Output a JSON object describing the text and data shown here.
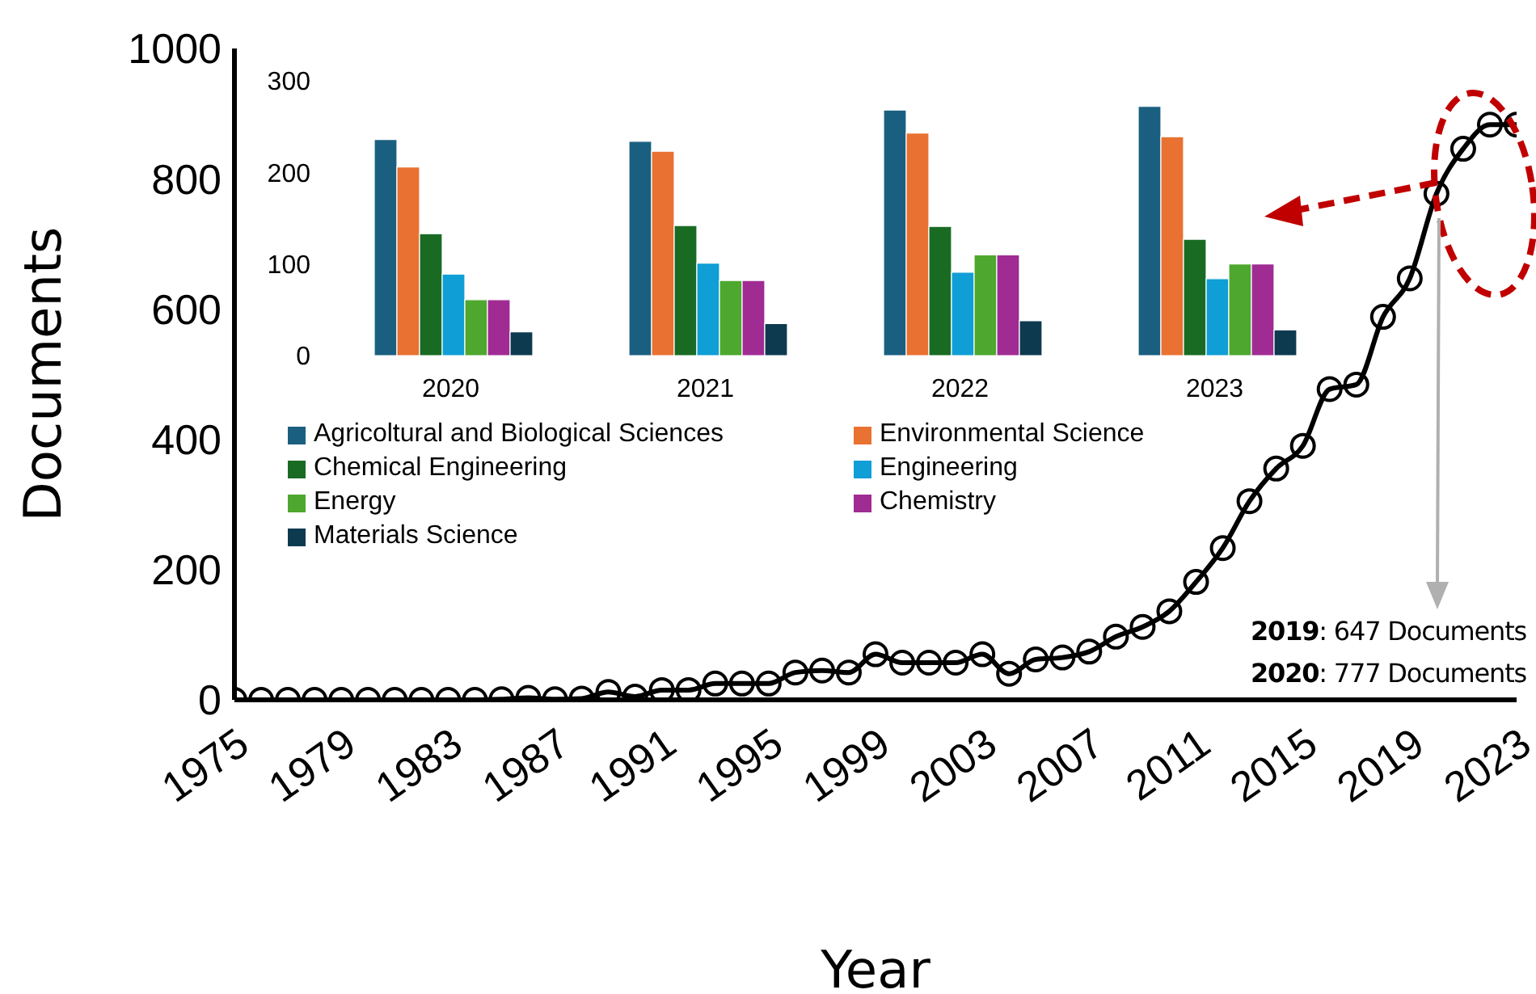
{
  "chart_data": [
    {
      "type": "line",
      "xlabel": "Year",
      "ylabel": "Documents",
      "x": [
        1975,
        1976,
        1977,
        1978,
        1979,
        1980,
        1981,
        1982,
        1983,
        1984,
        1985,
        1986,
        1987,
        1988,
        1989,
        1990,
        1991,
        1992,
        1993,
        1994,
        1995,
        1996,
        1997,
        1998,
        1999,
        2000,
        2001,
        2002,
        2003,
        2004,
        2005,
        2006,
        2007,
        2008,
        2009,
        2010,
        2011,
        2012,
        2013,
        2014,
        2015,
        2016,
        2017,
        2018,
        2019,
        2020,
        2021,
        2022,
        2023
      ],
      "series": [
        {
          "color": "#000000",
          "values": [
            0,
            0,
            0,
            0,
            0,
            0,
            0,
            0,
            0,
            0,
            1,
            3,
            1,
            2,
            12,
            5,
            15,
            15,
            25,
            25,
            25,
            42,
            45,
            42,
            70,
            57,
            57,
            57,
            70,
            40,
            62,
            65,
            74,
            97,
            112,
            136,
            181,
            233,
            305,
            355,
            390,
            477,
            484,
            588,
            647,
            777,
            846,
            883,
            883
          ]
        }
      ],
      "xlim": [
        1975,
        2023
      ],
      "xticks": [
        1975,
        1979,
        1983,
        1987,
        1991,
        1995,
        1999,
        2003,
        2007,
        2011,
        2015,
        2019,
        2023
      ],
      "ylim": [
        0,
        1000
      ],
      "yticks": [
        0,
        200,
        400,
        600,
        800,
        1000
      ],
      "marker": "circle",
      "line_style": "solid",
      "annotations": [
        "2019: 647 Documents",
        "2020: 777 Documents"
      ]
    },
    {
      "type": "bar",
      "categories": [
        "2020",
        "2021",
        "2022",
        "2023"
      ],
      "series": [
        {
          "name": "Agricoltural and Biological Sciences",
          "color": "#1a5f80",
          "values": [
            236,
            234,
            268,
            272
          ]
        },
        {
          "name": "Environmental Science",
          "color": "#e97132",
          "values": [
            206,
            223,
            243,
            239
          ]
        },
        {
          "name": "Chemical Engineering",
          "color": "#196b24",
          "values": [
            133,
            142,
            141,
            127
          ]
        },
        {
          "name": "Engineering",
          "color": "#0f9ed5",
          "values": [
            89,
            101,
            91,
            84
          ]
        },
        {
          "name": "Energy",
          "color": "#4ea72e",
          "values": [
            61,
            82,
            110,
            100
          ]
        },
        {
          "name": "Chemistry",
          "color": "#a02b93",
          "values": [
            61,
            82,
            110,
            100
          ]
        },
        {
          "name": "Materials Science",
          "color": "#0e3a50",
          "values": [
            26,
            35,
            38,
            28
          ]
        }
      ],
      "ylim": [
        0,
        300
      ],
      "yticks": [
        0,
        100,
        200,
        300
      ],
      "legend": "bottom"
    }
  ]
}
